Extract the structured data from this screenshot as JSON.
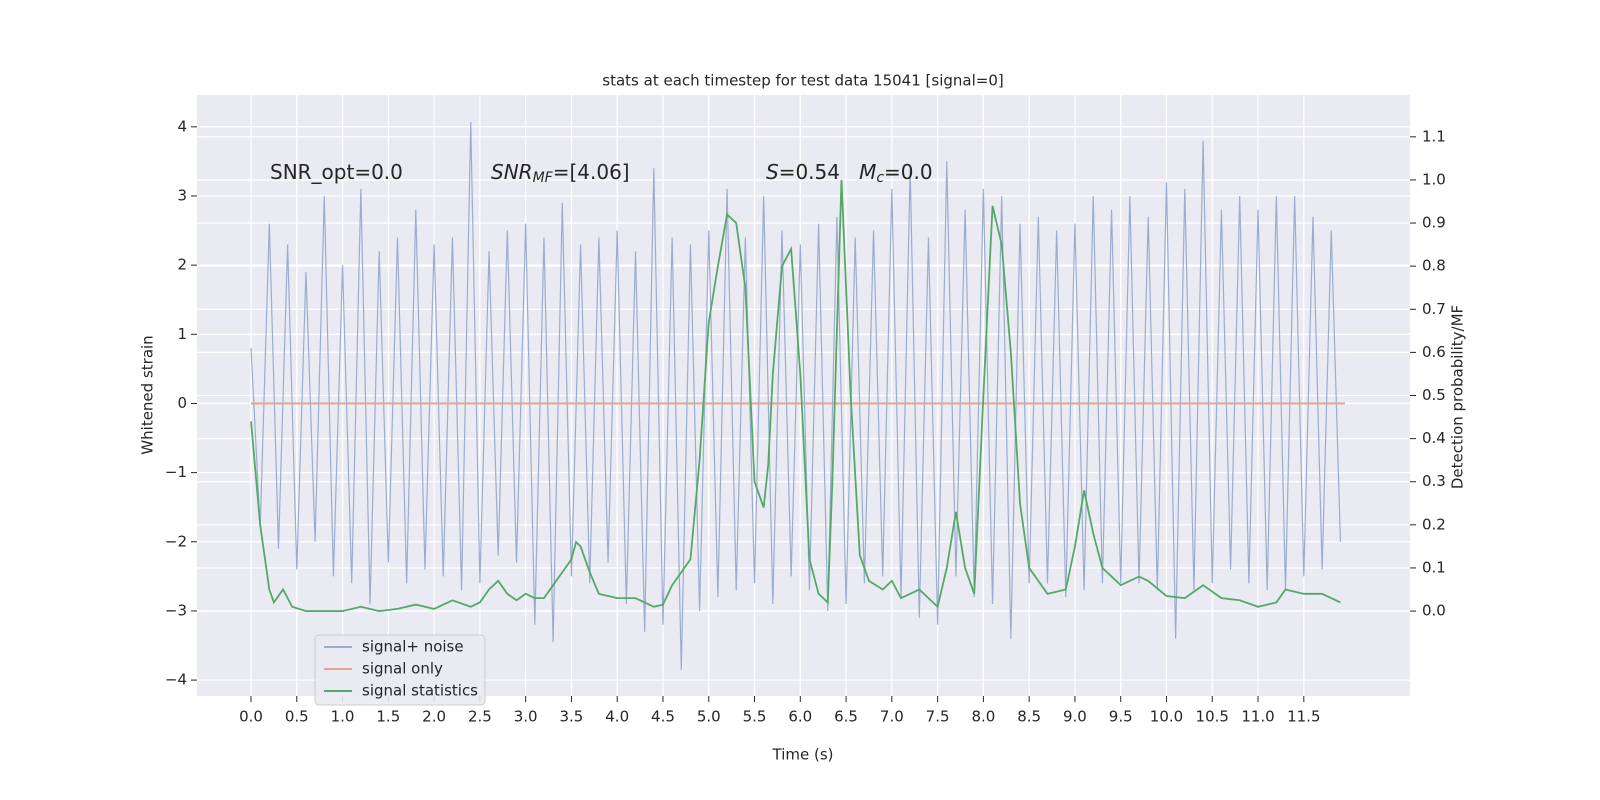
{
  "chart_data": {
    "type": "line",
    "title": "stats at each timestep for test data 15041 [signal=0]",
    "xlabel": "Time (s)",
    "ylabel": "Whitened strain",
    "y2label": "Detection probability/MF",
    "annotations": [
      {
        "parts": [
          {
            "text": "SNR_opt=0.0"
          }
        ]
      },
      {
        "parts": [
          {
            "text": "SNR",
            "style": "italic"
          },
          {
            "text": "MF",
            "style": "italic",
            "sub": true
          },
          {
            "text": "=[4.06]"
          }
        ]
      },
      {
        "parts": [
          {
            "text": "S",
            "style": "italic"
          },
          {
            "text": "=0.54   "
          },
          {
            "text": "M",
            "style": "italic"
          },
          {
            "text": "c",
            "style": "italic",
            "sub": true
          },
          {
            "text": "=0.0"
          }
        ]
      }
    ],
    "xlim": [
      -0.59,
      12.66
    ],
    "xticks": [
      {
        "value": 0,
        "label": "0.0"
      },
      {
        "value": 0.5,
        "label": "0.5"
      },
      {
        "value": 1,
        "label": "1.0"
      },
      {
        "value": 1.5,
        "label": "1.5"
      },
      {
        "value": 2,
        "label": "2.0"
      },
      {
        "value": 2.5,
        "label": "2.5"
      },
      {
        "value": 3,
        "label": "3.0"
      },
      {
        "value": 3.5,
        "label": "3.5"
      },
      {
        "value": 4,
        "label": "4.0"
      },
      {
        "value": 4.5,
        "label": "4.5"
      },
      {
        "value": 5,
        "label": "5.0"
      },
      {
        "value": 5.5,
        "label": "5.5"
      },
      {
        "value": 6,
        "label": "6.0"
      },
      {
        "value": 6.5,
        "label": "6.5"
      },
      {
        "value": 7,
        "label": "7.0"
      },
      {
        "value": 7.5,
        "label": "7.5"
      },
      {
        "value": 8,
        "label": "8.0"
      },
      {
        "value": 8.5,
        "label": "8.5"
      },
      {
        "value": 9,
        "label": "9.0"
      },
      {
        "value": 9.5,
        "label": "9.5"
      },
      {
        "value": 10,
        "label": "10.0"
      },
      {
        "value": 10.5,
        "label": "10.5"
      },
      {
        "value": 11,
        "label": "11.0"
      },
      {
        "value": 11.5,
        "label": "11.5"
      }
    ],
    "ylim": [
      -4.23,
      4.46
    ],
    "yticks": [
      {
        "value": -4,
        "label": "−4"
      },
      {
        "value": -3,
        "label": "−3"
      },
      {
        "value": -2,
        "label": "−2"
      },
      {
        "value": -1,
        "label": "−1"
      },
      0,
      1,
      2,
      3,
      4
    ],
    "y2lim": [
      -0.197,
      1.197
    ],
    "y2ticks": [
      {
        "value": 0,
        "label": "0.0"
      },
      {
        "value": 0.1,
        "label": "0.1"
      },
      {
        "value": 0.2,
        "label": "0.2"
      },
      {
        "value": 0.3,
        "label": "0.3"
      },
      {
        "value": 0.4,
        "label": "0.4"
      },
      {
        "value": 0.5,
        "label": "0.5"
      },
      {
        "value": 0.6,
        "label": "0.6"
      },
      {
        "value": 0.7,
        "label": "0.7"
      },
      {
        "value": 0.8,
        "label": "0.8"
      },
      {
        "value": 0.9,
        "label": "0.9"
      },
      {
        "value": 1,
        "label": "1.0"
      },
      {
        "value": 1.1,
        "label": "1.1"
      }
    ],
    "grid": true,
    "legend": "lower left",
    "series": [
      {
        "name": "signal+ noise",
        "color": "#9aadd0",
        "x": [
          0.0,
          0.1,
          0.2,
          0.3,
          0.4,
          0.5,
          0.6,
          0.7,
          0.8,
          0.9,
          1.0,
          1.1,
          1.2,
          1.3,
          1.4,
          1.5,
          1.6,
          1.7,
          1.8,
          1.9,
          2.0,
          2.1,
          2.2,
          2.3,
          2.4,
          2.5,
          2.6,
          2.7,
          2.8,
          2.9,
          3.0,
          3.1,
          3.2,
          3.3,
          3.4,
          3.5,
          3.6,
          3.7,
          3.8,
          3.9,
          4.0,
          4.1,
          4.2,
          4.3,
          4.4,
          4.5,
          4.6,
          4.7,
          4.8,
          4.9,
          5.0,
          5.1,
          5.2,
          5.3,
          5.4,
          5.5,
          5.6,
          5.7,
          5.8,
          5.9,
          6.0,
          6.1,
          6.2,
          6.3,
          6.4,
          6.5,
          6.6,
          6.7,
          6.8,
          6.9,
          7.0,
          7.1,
          7.2,
          7.3,
          7.4,
          7.5,
          7.6,
          7.7,
          7.8,
          7.9,
          8.0,
          8.1,
          8.2,
          8.3,
          8.4,
          8.5,
          8.6,
          8.7,
          8.8,
          8.9,
          9.0,
          9.1,
          9.2,
          9.3,
          9.4,
          9.5,
          9.6,
          9.7,
          9.8,
          9.9,
          10.0,
          10.1,
          10.2,
          10.3,
          10.4,
          10.5,
          10.6,
          10.7,
          10.8,
          10.9,
          11.0,
          11.1,
          11.2,
          11.3,
          11.4,
          11.5,
          11.6,
          11.7,
          11.8,
          11.9
        ],
        "values": [
          0.8,
          -1.8,
          2.6,
          -2.1,
          2.3,
          -2.4,
          1.9,
          -2.0,
          3.0,
          -2.5,
          2.0,
          -2.6,
          3.1,
          -2.9,
          2.2,
          -2.3,
          2.4,
          -2.6,
          2.8,
          -2.4,
          2.3,
          -2.5,
          2.4,
          -2.7,
          4.07,
          -2.6,
          2.2,
          -2.2,
          2.5,
          -2.3,
          2.6,
          -3.2,
          2.4,
          -3.45,
          2.9,
          -2.5,
          2.3,
          -2.6,
          2.4,
          -2.3,
          2.5,
          -2.9,
          2.2,
          -3.3,
          3.4,
          -3.2,
          2.4,
          -3.85,
          2.3,
          -3.0,
          2.5,
          -2.8,
          3.1,
          -2.7,
          2.4,
          -2.6,
          3.0,
          -2.9,
          2.5,
          -2.5,
          2.3,
          -2.7,
          2.6,
          -3.0,
          2.7,
          -2.9,
          2.4,
          -2.6,
          2.5,
          -2.5,
          3.1,
          -2.8,
          3.4,
          -3.1,
          2.4,
          -3.2,
          3.5,
          -2.5,
          2.8,
          -2.8,
          3.1,
          -2.9,
          3.0,
          -3.4,
          2.6,
          -2.6,
          2.7,
          -2.6,
          2.5,
          -2.8,
          2.6,
          -2.7,
          3.0,
          -2.6,
          2.8,
          -2.6,
          3.0,
          -2.6,
          2.7,
          -2.7,
          3.2,
          -3.4,
          3.1,
          -2.7,
          3.8,
          -2.6,
          2.8,
          -2.4,
          3.0,
          -2.6,
          2.8,
          -2.7,
          3.0,
          -2.7,
          3.0,
          -2.5,
          2.7,
          -2.4,
          2.5,
          -2.0
        ]
      },
      {
        "name": "signal only",
        "color": "#e3a58a",
        "x": [
          0.0,
          11.95
        ],
        "values": [
          0,
          0
        ]
      },
      {
        "name": "signal statistics",
        "color": "#55a868",
        "axis": "y2",
        "x": [
          0.0,
          0.1,
          0.2,
          0.25,
          0.35,
          0.45,
          0.6,
          0.8,
          1.0,
          1.2,
          1.4,
          1.6,
          1.8,
          2.0,
          2.2,
          2.4,
          2.5,
          2.6,
          2.7,
          2.8,
          2.9,
          3.0,
          3.1,
          3.2,
          3.3,
          3.4,
          3.5,
          3.55,
          3.6,
          3.7,
          3.8,
          4.0,
          4.2,
          4.4,
          4.5,
          4.6,
          4.7,
          4.8,
          4.9,
          5.0,
          5.1,
          5.2,
          5.3,
          5.4,
          5.5,
          5.6,
          5.65,
          5.7,
          5.8,
          5.9,
          6.0,
          6.1,
          6.2,
          6.3,
          6.35,
          6.45,
          6.55,
          6.65,
          6.75,
          6.9,
          7.0,
          7.1,
          7.3,
          7.5,
          7.6,
          7.7,
          7.8,
          7.9,
          8.0,
          8.1,
          8.2,
          8.3,
          8.4,
          8.5,
          8.7,
          8.9,
          9.0,
          9.1,
          9.2,
          9.3,
          9.5,
          9.7,
          9.8,
          10.0,
          10.2,
          10.4,
          10.6,
          10.8,
          11.0,
          11.2,
          11.3,
          11.5,
          11.7,
          11.9
        ],
        "values": [
          0.44,
          0.2,
          0.05,
          0.02,
          0.05,
          0.01,
          0.0,
          0.0,
          0.0,
          0.01,
          0.0,
          0.005,
          0.015,
          0.005,
          0.025,
          0.01,
          0.02,
          0.05,
          0.07,
          0.04,
          0.025,
          0.04,
          0.03,
          0.03,
          0.06,
          0.09,
          0.12,
          0.16,
          0.15,
          0.09,
          0.04,
          0.03,
          0.03,
          0.01,
          0.015,
          0.06,
          0.09,
          0.12,
          0.35,
          0.67,
          0.8,
          0.92,
          0.9,
          0.75,
          0.3,
          0.24,
          0.34,
          0.55,
          0.8,
          0.84,
          0.55,
          0.12,
          0.04,
          0.02,
          0.3,
          1.0,
          0.5,
          0.13,
          0.07,
          0.05,
          0.07,
          0.03,
          0.05,
          0.01,
          0.1,
          0.23,
          0.1,
          0.04,
          0.5,
          0.94,
          0.85,
          0.6,
          0.25,
          0.1,
          0.04,
          0.05,
          0.15,
          0.28,
          0.18,
          0.1,
          0.06,
          0.08,
          0.07,
          0.035,
          0.03,
          0.06,
          0.03,
          0.025,
          0.01,
          0.02,
          0.05,
          0.04,
          0.04,
          0.02
        ]
      }
    ]
  }
}
